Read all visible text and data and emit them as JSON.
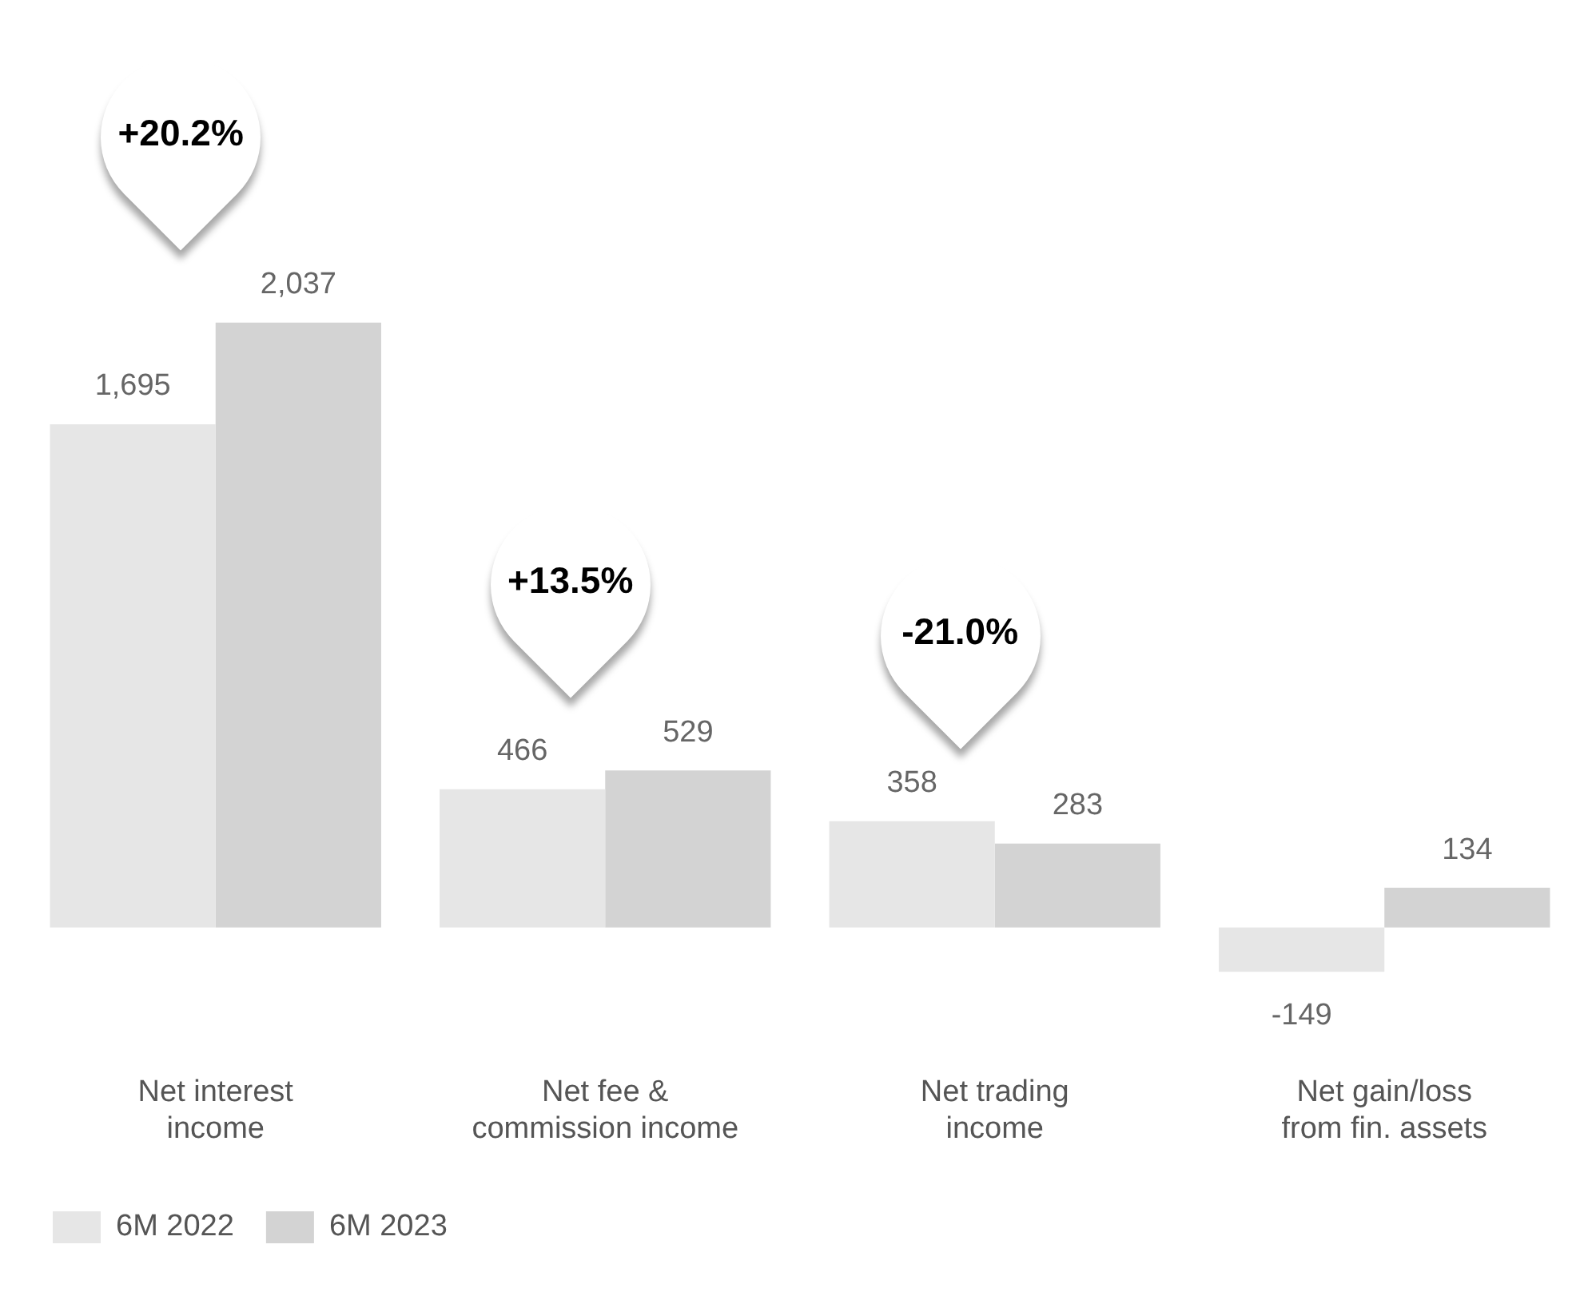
{
  "chart_data": {
    "type": "bar",
    "categories": [
      "Net interest income",
      "Net fee & commission income",
      "Net trading income",
      "Net gain/loss from fin. assets"
    ],
    "series": [
      {
        "name": "6M 2022",
        "color": "#e6e6e6",
        "values": [
          1695,
          466,
          358,
          -149
        ],
        "value_labels": [
          "1,695",
          "466",
          "358",
          "-149"
        ]
      },
      {
        "name": "6M 2023",
        "color": "#d3d3d3",
        "values": [
          2037,
          529,
          283,
          134
        ],
        "value_labels": [
          "2,037",
          "529",
          "283",
          "134"
        ]
      }
    ],
    "annotations": [
      "+20.2%",
      "+13.5%",
      "-21.0%"
    ],
    "legend": "bottom left",
    "grid": false
  }
}
